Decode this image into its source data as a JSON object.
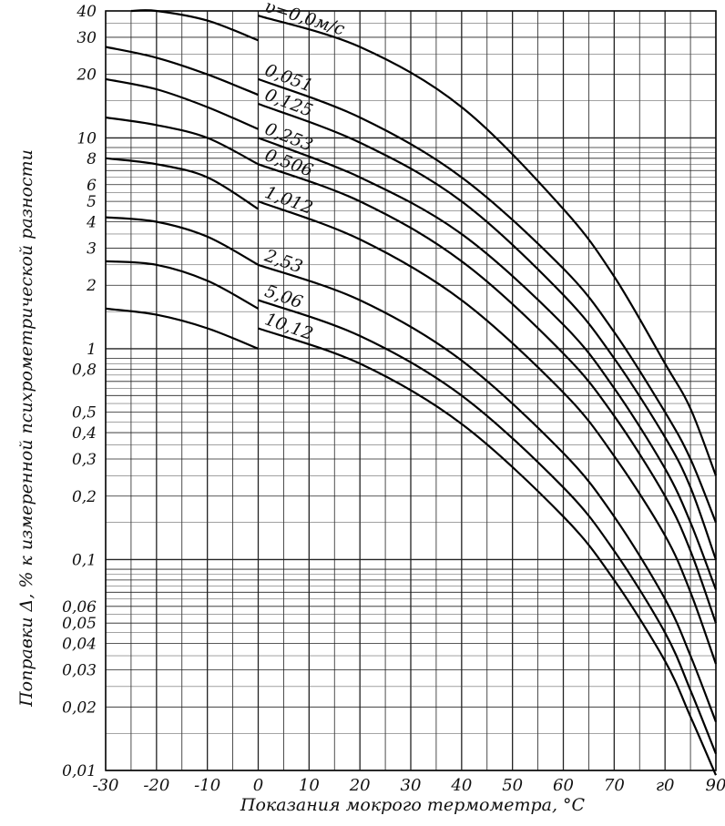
{
  "chart_data": {
    "type": "line",
    "title": "",
    "xlabel": "Показания мокрого термометра, °C",
    "ylabel": "Поправки Δ, % к измеренной психрометрической разности",
    "xlim": [
      -30,
      90
    ],
    "ylim": [
      0.01,
      40
    ],
    "y_scale": "log",
    "grid": true,
    "x_ticks": [
      -30,
      -20,
      -10,
      0,
      10,
      20,
      30,
      40,
      50,
      60,
      70,
      80,
      90
    ],
    "x_tick_labels": [
      "-30",
      "-20",
      "-10",
      "0",
      "10",
      "20",
      "30",
      "40",
      "50",
      "60",
      "70",
      "г0",
      "90"
    ],
    "y_ticks": [
      40,
      30,
      20,
      10,
      8,
      6,
      5,
      4,
      3,
      2,
      1,
      0.8,
      0.5,
      0.4,
      0.3,
      0.2,
      0.1,
      0.06,
      0.05,
      0.04,
      0.03,
      0.02,
      0.01
    ],
    "y_tick_labels": [
      "40",
      "30",
      "20",
      "10",
      "8",
      "6",
      "5",
      "4",
      "3",
      "2",
      "1",
      "0,8",
      "0,5",
      "0,4",
      "0,3",
      "0,2",
      "0,1",
      "0,06",
      "0,05",
      "0,04",
      "0,03",
      "0,02",
      "0,01"
    ],
    "series": [
      {
        "name": "υ=0,0м/с",
        "ice": [
          [
            -25,
            40
          ],
          [
            -20,
            40
          ],
          [
            -10,
            36
          ],
          [
            0,
            29
          ]
        ],
        "water": [
          [
            0,
            38
          ],
          [
            20,
            27
          ],
          [
            40,
            14
          ],
          [
            60,
            4.6
          ],
          [
            70,
            2.2
          ],
          [
            80,
            0.85
          ],
          [
            85,
            0.52
          ],
          [
            90,
            0.25
          ]
        ]
      },
      {
        "name": "0,051",
        "ice": [
          [
            -30,
            27
          ],
          [
            -20,
            24
          ],
          [
            -10,
            20
          ],
          [
            0,
            16
          ]
        ],
        "water": [
          [
            0,
            19
          ],
          [
            20,
            12.5
          ],
          [
            40,
            6.5
          ],
          [
            60,
            2.4
          ],
          [
            70,
            1.2
          ],
          [
            80,
            0.5
          ],
          [
            85,
            0.3
          ],
          [
            90,
            0.15
          ]
        ]
      },
      {
        "name": "0,125",
        "ice": [
          [
            -30,
            19
          ],
          [
            -20,
            17
          ],
          [
            -10,
            14
          ],
          [
            0,
            11
          ]
        ],
        "water": [
          [
            0,
            14.5
          ],
          [
            20,
            9.5
          ],
          [
            40,
            5
          ],
          [
            60,
            1.8
          ],
          [
            70,
            0.9
          ],
          [
            80,
            0.38
          ],
          [
            85,
            0.22
          ],
          [
            90,
            0.1
          ]
        ]
      },
      {
        "name": "0,253",
        "ice": [
          [
            -30,
            12.5
          ],
          [
            -20,
            11.5
          ],
          [
            -10,
            10
          ],
          [
            0,
            7.5
          ]
        ],
        "water": [
          [
            0,
            10
          ],
          [
            20,
            6.5
          ],
          [
            40,
            3.5
          ],
          [
            60,
            1.3
          ],
          [
            70,
            0.65
          ],
          [
            80,
            0.27
          ],
          [
            85,
            0.15
          ],
          [
            90,
            0.072
          ]
        ]
      },
      {
        "name": "0,506",
        "ice": [
          [
            -30,
            8
          ],
          [
            -20,
            7.5
          ],
          [
            -10,
            6.5
          ],
          [
            0,
            4.6
          ]
        ],
        "water": [
          [
            0,
            7.5
          ],
          [
            20,
            5
          ],
          [
            40,
            2.6
          ],
          [
            60,
            0.95
          ],
          [
            70,
            0.48
          ],
          [
            80,
            0.2
          ],
          [
            85,
            0.11
          ],
          [
            90,
            0.05
          ]
        ]
      },
      {
        "name": "1,012",
        "ice": [
          [
            -30,
            4.2
          ],
          [
            -20,
            4
          ],
          [
            -10,
            3.4
          ],
          [
            0,
            2.5
          ]
        ],
        "water": [
          [
            0,
            5
          ],
          [
            20,
            3.3
          ],
          [
            40,
            1.7
          ],
          [
            60,
            0.62
          ],
          [
            70,
            0.31
          ],
          [
            80,
            0.13
          ],
          [
            85,
            0.07
          ],
          [
            90,
            0.032
          ]
        ]
      },
      {
        "name": "2,53",
        "ice": [
          [
            -30,
            2.6
          ],
          [
            -20,
            2.5
          ],
          [
            -10,
            2.1
          ],
          [
            0,
            1.55
          ]
        ],
        "water": [
          [
            0,
            2.5
          ],
          [
            20,
            1.7
          ],
          [
            40,
            0.88
          ],
          [
            60,
            0.32
          ],
          [
            70,
            0.16
          ],
          [
            80,
            0.065
          ],
          [
            85,
            0.035
          ],
          [
            90,
            0.017
          ]
        ]
      },
      {
        "name": "5,06",
        "ice": [
          [
            -30,
            1.55
          ],
          [
            -20,
            1.45
          ],
          [
            -10,
            1.25
          ],
          [
            0,
            1.0
          ]
        ],
        "water": [
          [
            0,
            1.7
          ],
          [
            20,
            1.15
          ],
          [
            40,
            0.6
          ],
          [
            60,
            0.22
          ],
          [
            70,
            0.11
          ],
          [
            80,
            0.045
          ],
          [
            85,
            0.024
          ],
          [
            90,
            0.012
          ]
        ]
      },
      {
        "name": "10,12",
        "ice": [],
        "water": [
          [
            0,
            1.25
          ],
          [
            20,
            0.85
          ],
          [
            40,
            0.44
          ],
          [
            60,
            0.16
          ],
          [
            70,
            0.08
          ],
          [
            80,
            0.033
          ],
          [
            85,
            0.018
          ],
          [
            90,
            0.0095
          ]
        ]
      }
    ]
  }
}
